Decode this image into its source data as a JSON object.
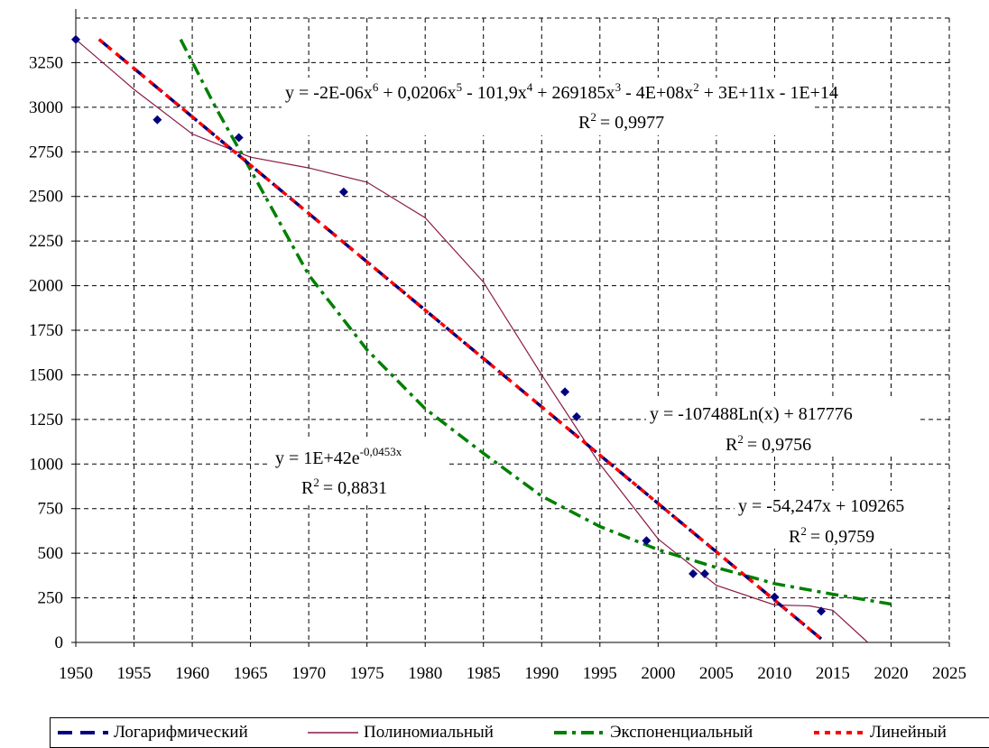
{
  "chart_data": {
    "type": "scatter",
    "xlim": [
      1950,
      2025
    ],
    "ylim": [
      0,
      3500
    ],
    "x_ticks": [
      1950,
      1955,
      1960,
      1965,
      1970,
      1975,
      1980,
      1985,
      1990,
      1995,
      2000,
      2005,
      2010,
      2015,
      2020,
      2025
    ],
    "y_ticks": [
      0,
      250,
      500,
      750,
      1000,
      1250,
      1500,
      1750,
      2000,
      2250,
      2500,
      2750,
      3000,
      3250
    ],
    "grid": true,
    "points": [
      {
        "x": 1950,
        "y": 3380
      },
      {
        "x": 1957,
        "y": 2930
      },
      {
        "x": 1964,
        "y": 2830
      },
      {
        "x": 1973,
        "y": 2525
      },
      {
        "x": 1992,
        "y": 1405
      },
      {
        "x": 1993,
        "y": 1265
      },
      {
        "x": 1999,
        "y": 570
      },
      {
        "x": 2003,
        "y": 385
      },
      {
        "x": 2004,
        "y": 385
      },
      {
        "x": 2010,
        "y": 255
      },
      {
        "x": 2014,
        "y": 175
      }
    ],
    "series": [
      {
        "name": "Логарифмический",
        "color": "#00007f",
        "style": "long-dash",
        "x": [
          1952,
          2014
        ],
        "y": [
          3380,
          20
        ]
      },
      {
        "name": "Полиномиальный",
        "color": "#8b1a4a",
        "style": "solid",
        "x": [
          1950,
          1955,
          1960,
          1965,
          1970,
          1975,
          1980,
          1985,
          1990,
          1995,
          2000,
          2005,
          2010,
          2013,
          2015,
          2018
        ],
        "y": [
          3380,
          3100,
          2850,
          2720,
          2660,
          2580,
          2380,
          2020,
          1500,
          1000,
          580,
          320,
          210,
          205,
          180,
          0
        ]
      },
      {
        "name": "Экспоненциальный",
        "color": "#008000",
        "style": "dash-dot",
        "x": [
          1959,
          1962,
          1965,
          1970,
          1975,
          1980,
          1985,
          1990,
          1995,
          2000,
          2005,
          2010,
          2015,
          2020
        ],
        "y": [
          3380,
          3000,
          2650,
          2060,
          1640,
          1310,
          1060,
          820,
          650,
          520,
          420,
          330,
          270,
          215
        ]
      },
      {
        "name": "Линейный",
        "color": "#ff0000",
        "style": "dotted",
        "x": [
          1952,
          2014
        ],
        "y": [
          3380,
          20
        ]
      }
    ],
    "annotations": {
      "poly": {
        "eq_parts": [
          "y = -2E-06x",
          "6",
          " + 0,0206x",
          "5",
          " - 101,9x",
          "4",
          " + 269185x",
          "3",
          " - 4E+08x",
          "2",
          " + 3E+11x - 1E+14"
        ],
        "r2": "= 0,9977"
      },
      "log": {
        "eq": "y = -107488Ln(x) + 817776",
        "r2": "= 0,9756"
      },
      "lin": {
        "eq": "y = -54,247x + 109265",
        "r2": "= 0,9759"
      },
      "exp": {
        "eq_base": "y = 1E+42e",
        "eq_exp": "-0,0453x",
        "r2": "= 0,8831"
      }
    },
    "r2_label": "R",
    "r2_sup": "2"
  }
}
